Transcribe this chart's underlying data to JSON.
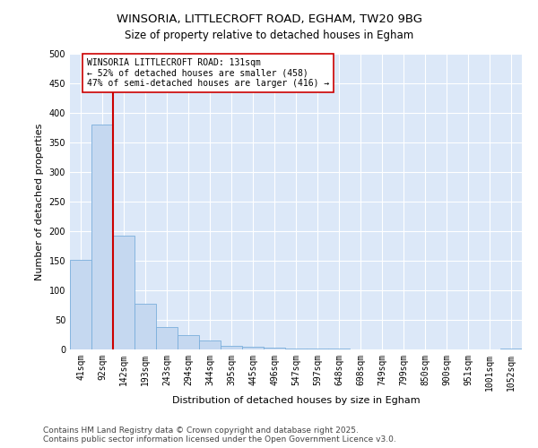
{
  "title_line1": "WINSORIA, LITTLECROFT ROAD, EGHAM, TW20 9BG",
  "title_line2": "Size of property relative to detached houses in Egham",
  "xlabel": "Distribution of detached houses by size in Egham",
  "ylabel": "Number of detached properties",
  "bar_color": "#c5d8f0",
  "bar_edge_color": "#7aaedc",
  "bar_values": [
    152,
    380,
    192,
    78,
    38,
    25,
    15,
    6,
    5,
    3,
    2,
    1,
    1,
    0,
    0,
    0,
    0,
    0,
    0,
    0,
    1
  ],
  "bin_labels": [
    "41sqm",
    "92sqm",
    "142sqm",
    "193sqm",
    "243sqm",
    "294sqm",
    "344sqm",
    "395sqm",
    "445sqm",
    "496sqm",
    "547sqm",
    "597sqm",
    "648sqm",
    "698sqm",
    "749sqm",
    "799sqm",
    "850sqm",
    "900sqm",
    "951sqm",
    "1001sqm",
    "1052sqm"
  ],
  "ylim": [
    0,
    500
  ],
  "yticks": [
    0,
    50,
    100,
    150,
    200,
    250,
    300,
    350,
    400,
    450,
    500
  ],
  "red_line_x": 2.0,
  "annotation_text": "WINSORIA LITTLECROFT ROAD: 131sqm\n← 52% of detached houses are smaller (458)\n47% of semi-detached houses are larger (416) →",
  "annotation_box_color": "#ffffff",
  "annotation_box_edge_color": "#cc0000",
  "vline_color": "#cc0000",
  "footer_text": "Contains HM Land Registry data © Crown copyright and database right 2025.\nContains public sector information licensed under the Open Government Licence v3.0.",
  "background_color": "#dce8f8",
  "grid_color": "#ffffff",
  "title_fontsize": 9.5,
  "subtitle_fontsize": 8.5,
  "axis_label_fontsize": 8,
  "tick_fontsize": 7,
  "annotation_fontsize": 7,
  "footer_fontsize": 6.5
}
